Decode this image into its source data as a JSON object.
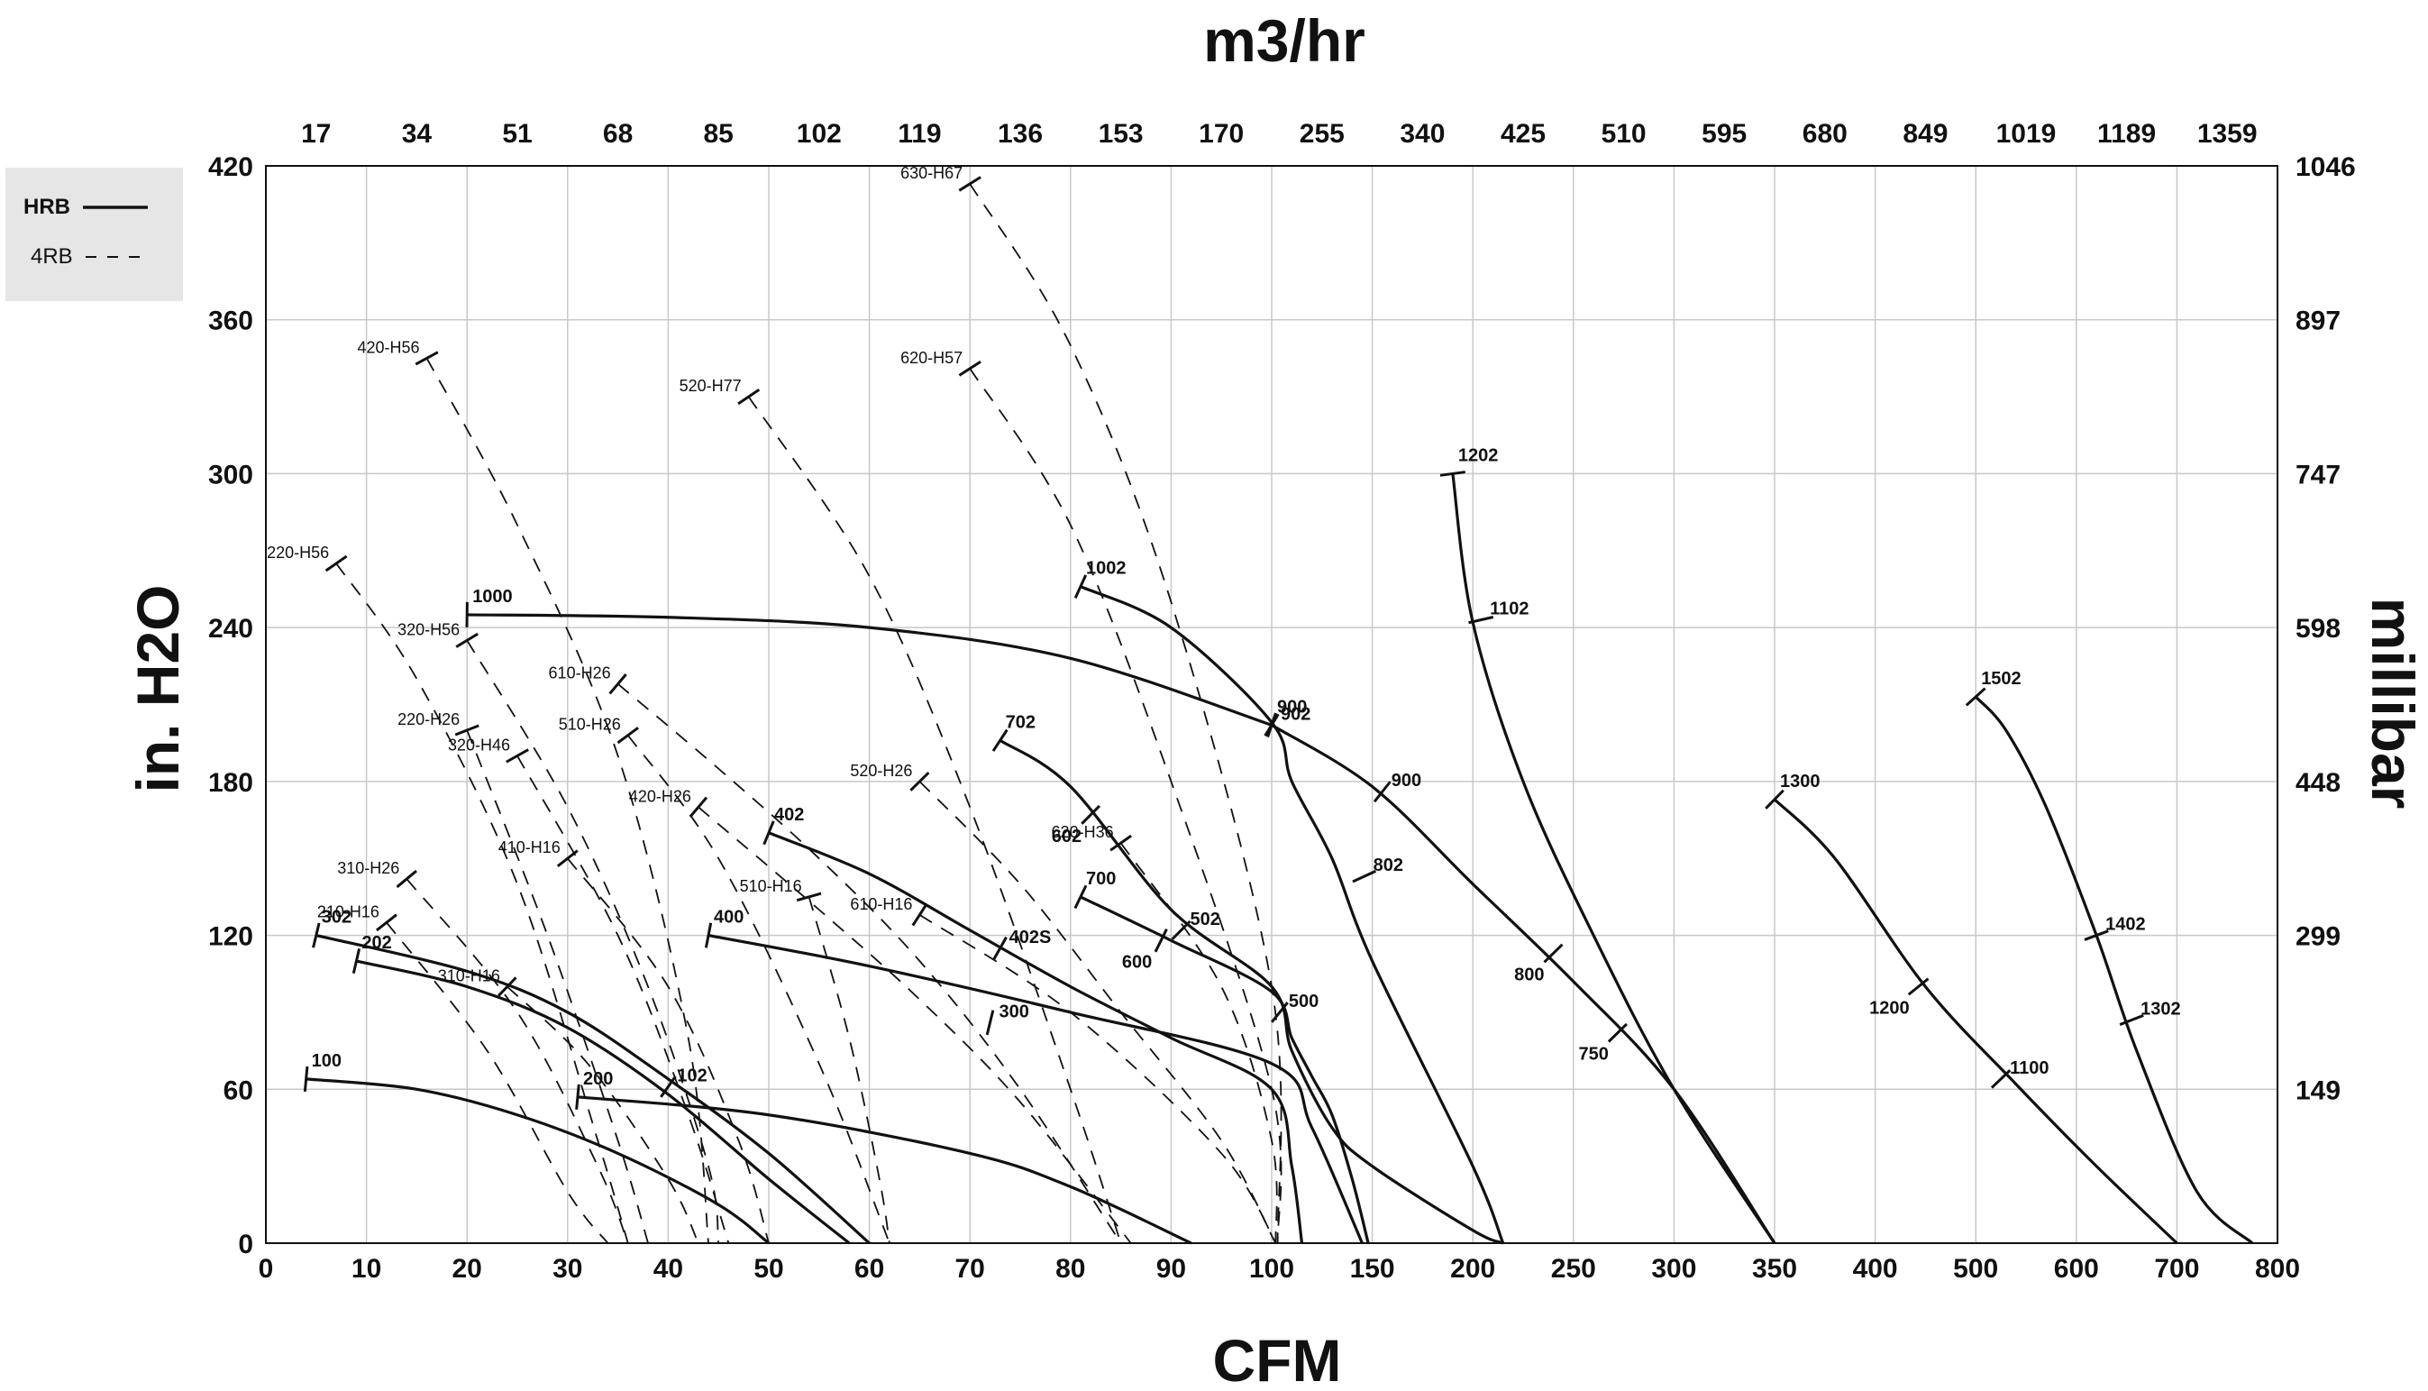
{
  "chart_data": {
    "type": "line",
    "title": "",
    "xlabel": "CFM",
    "ylabel": "in. H2O",
    "x2label": "m3/hr",
    "y2label": "millibar",
    "legend": {
      "position": "top-left",
      "entries": [
        {
          "name": "HRB",
          "style": "solid",
          "bold": true
        },
        {
          "name": "4RB",
          "style": "dashed",
          "bold": false
        }
      ]
    },
    "grid": true,
    "x_axis": {
      "scale": "piecewise",
      "ticks": [
        "0",
        "10",
        "20",
        "30",
        "40",
        "50",
        "60",
        "70",
        "80",
        "90",
        "100",
        "150",
        "200",
        "250",
        "300",
        "350",
        "400",
        "500",
        "600",
        "700",
        "800"
      ]
    },
    "top_axis_ticks": [
      "17",
      "34",
      "51",
      "68",
      "85",
      "102",
      "119",
      "136",
      "153",
      "170",
      "255",
      "340",
      "425",
      "510",
      "595",
      "680",
      "849",
      "1019",
      "1189",
      "1359"
    ],
    "y_axis": {
      "ylim": [
        0,
        420
      ],
      "ticks": [
        "0",
        "60",
        "120",
        "180",
        "240",
        "300",
        "360",
        "420"
      ]
    },
    "right_axis_ticks": [
      "149",
      "299",
      "448",
      "598",
      "747",
      "897",
      "1046"
    ],
    "series": [
      {
        "name": "1000",
        "style": "solid",
        "x": [
          20,
          40,
          60,
          80,
          100
        ],
        "y": [
          245,
          244,
          240,
          228,
          202
        ],
        "marks": [
          {
            "x": 100,
            "y": 202,
            "label": "902",
            "lside": "right"
          }
        ]
      },
      {
        "name": "900",
        "style": "solid",
        "x": [
          100,
          150,
          200,
          250,
          300,
          350
        ],
        "y": [
          202,
          178,
          140,
          102,
          60,
          0
        ],
        "marks": [
          {
            "x": 155,
            "y": 176,
            "label": "900",
            "lside": "right"
          },
          {
            "x": 240,
            "y": 113,
            "label": "800",
            "lside": "left"
          },
          {
            "x": 272,
            "y": 82,
            "label": "750",
            "lside": "left"
          }
        ]
      },
      {
        "name": "1002",
        "style": "solid",
        "x": [
          81,
          90,
          100,
          110,
          130,
          150,
          200,
          215
        ],
        "y": [
          256,
          240,
          203,
          180,
          150,
          110,
          30,
          0
        ],
        "marks": [
          {
            "x": 146,
            "y": 143,
            "label": "802",
            "lside": "right"
          }
        ]
      },
      {
        "name": "1202",
        "style": "solid",
        "x": [
          190,
          200,
          225,
          260,
          300,
          350
        ],
        "y": [
          300,
          242,
          180,
          120,
          60,
          0
        ],
        "marks": [
          {
            "x": 204,
            "y": 243,
            "label": "1102",
            "lside": "right"
          }
        ]
      },
      {
        "name": "1300",
        "style": "solid",
        "x": [
          350,
          380,
          450,
          540,
          620,
          700
        ],
        "y": [
          173,
          150,
          100,
          62,
          30,
          0
        ],
        "marks": [
          {
            "x": 443,
            "y": 100,
            "label": "1200",
            "lside": "left"
          },
          {
            "x": 525,
            "y": 64,
            "label": "1100",
            "lside": "right"
          }
        ]
      },
      {
        "name": "1502",
        "style": "solid",
        "x": [
          500,
          530,
          570,
          620,
          660,
          720,
          775
        ],
        "y": [
          213,
          200,
          170,
          120,
          75,
          20,
          0
        ],
        "marks": [
          {
            "x": 620,
            "y": 120,
            "label": "1402",
            "lside": "right"
          },
          {
            "x": 655,
            "y": 87,
            "label": "1302",
            "lside": "right"
          }
        ]
      },
      {
        "name": "702",
        "style": "solid",
        "x": [
          73,
          80,
          90,
          100,
          110,
          130,
          150,
          200,
          215
        ],
        "y": [
          196,
          178,
          130,
          100,
          75,
          45,
          30,
          5,
          0
        ],
        "marks": [
          {
            "x": 82,
            "y": 167,
            "label": "602",
            "lside": "left"
          },
          {
            "x": 91,
            "y": 122,
            "label": "502",
            "lside": "right"
          }
        ]
      },
      {
        "name": "700",
        "style": "solid",
        "x": [
          81,
          90,
          100,
          110,
          120,
          130,
          140,
          148
        ],
        "y": [
          135,
          118,
          98,
          80,
          65,
          50,
          25,
          0
        ],
        "marks": [
          {
            "x": 89,
            "y": 118,
            "label": "600",
            "lside": "left"
          },
          {
            "x": 104,
            "y": 90,
            "label": "500",
            "lside": "right"
          }
        ]
      },
      {
        "name": "402",
        "style": "solid",
        "x": [
          50,
          60,
          70,
          80,
          90,
          100,
          110,
          115
        ],
        "y": [
          160,
          144,
          122,
          100,
          80,
          60,
          30,
          0
        ],
        "marks": [
          {
            "x": 73,
            "y": 115,
            "label": "402S",
            "lside": "right"
          }
        ]
      },
      {
        "name": "400",
        "style": "solid",
        "x": [
          44,
          60,
          80,
          100,
          120,
          145
        ],
        "y": [
          120,
          108,
          90,
          70,
          45,
          0
        ],
        "marks": [
          {
            "x": 72,
            "y": 86,
            "label": "300",
            "lside": "right"
          }
        ]
      },
      {
        "name": "302",
        "style": "solid",
        "x": [
          5,
          20,
          30,
          40,
          50,
          60
        ],
        "y": [
          120,
          106,
          90,
          64,
          35,
          0
        ],
        "marks": [
          {
            "x": 40,
            "y": 61,
            "label": "102",
            "lside": "right"
          }
        ]
      },
      {
        "name": "202",
        "style": "solid",
        "x": [
          9,
          20,
          30,
          40,
          50,
          58
        ],
        "y": [
          110,
          100,
          84,
          58,
          25,
          0
        ],
        "marks": []
      },
      {
        "name": "100",
        "style": "solid",
        "x": [
          4,
          15,
          25,
          35,
          45,
          50
        ],
        "y": [
          64,
          60,
          50,
          35,
          15,
          0
        ],
        "marks": []
      },
      {
        "name": "200",
        "style": "solid",
        "x": [
          31,
          50,
          70,
          80,
          92
        ],
        "y": [
          57,
          50,
          35,
          22,
          0
        ],
        "marks": []
      },
      {
        "name": "630-H67",
        "style": "dashed",
        "x": [
          70,
          80,
          90,
          100,
          103
        ],
        "y": [
          413,
          350,
          250,
          100,
          0
        ],
        "marks": []
      },
      {
        "name": "620-H57",
        "style": "dashed",
        "x": [
          70,
          80,
          90,
          100,
          103
        ],
        "y": [
          341,
          280,
          180,
          60,
          0
        ],
        "marks": []
      },
      {
        "name": "520-H77",
        "style": "dashed",
        "x": [
          48,
          60,
          70,
          80,
          85
        ],
        "y": [
          330,
          260,
          170,
          60,
          0
        ],
        "marks": []
      },
      {
        "name": "420-H56",
        "style": "dashed",
        "x": [
          16,
          25,
          35,
          42,
          44
        ],
        "y": [
          345,
          280,
          190,
          80,
          0
        ],
        "marks": []
      },
      {
        "name": "220-H56",
        "style": "dashed",
        "x": [
          7,
          15,
          25,
          33,
          36
        ],
        "y": [
          265,
          220,
          140,
          40,
          0
        ],
        "marks": []
      },
      {
        "name": "320-H56",
        "style": "dashed",
        "x": [
          20,
          30,
          38,
          44,
          45
        ],
        "y": [
          235,
          170,
          100,
          30,
          0
        ],
        "marks": []
      },
      {
        "name": "610-H26",
        "style": "dashed",
        "x": [
          35,
          45,
          55,
          65,
          75,
          85
        ],
        "y": [
          218,
          185,
          150,
          110,
          60,
          0
        ],
        "marks": []
      },
      {
        "name": "620-H36",
        "style": "dashed",
        "x": [
          85,
          95,
          100,
          102
        ],
        "y": [
          156,
          100,
          40,
          0
        ],
        "marks": []
      },
      {
        "name": "520-H26",
        "style": "dashed",
        "x": [
          65,
          75,
          85,
          95,
          102
        ],
        "y": [
          180,
          140,
          90,
          40,
          0
        ],
        "marks": []
      },
      {
        "name": "220-H26",
        "style": "dashed",
        "x": [
          20,
          28,
          35,
          38
        ],
        "y": [
          200,
          120,
          40,
          0
        ],
        "marks": []
      },
      {
        "name": "320-H46",
        "style": "dashed",
        "x": [
          25,
          35,
          42,
          46
        ],
        "y": [
          190,
          120,
          50,
          0
        ],
        "marks": []
      },
      {
        "name": "510-H26",
        "style": "dashed",
        "x": [
          36,
          45,
          55,
          62
        ],
        "y": [
          198,
          150,
          70,
          0
        ],
        "marks": []
      },
      {
        "name": "420-H26",
        "style": "dashed",
        "x": [
          43,
          55,
          65,
          75,
          86
        ],
        "y": [
          170,
          130,
          95,
          55,
          0
        ],
        "marks": []
      },
      {
        "name": "310-H26",
        "style": "dashed",
        "x": [
          14,
          25,
          33,
          36
        ],
        "y": [
          142,
          90,
          30,
          0
        ],
        "marks": []
      },
      {
        "name": "410-H16",
        "style": "dashed",
        "x": [
          30,
          40,
          47,
          50
        ],
        "y": [
          150,
          100,
          40,
          0
        ],
        "marks": []
      },
      {
        "name": "210-H16",
        "style": "dashed",
        "x": [
          12,
          22,
          30,
          34
        ],
        "y": [
          125,
          75,
          20,
          0
        ],
        "marks": []
      },
      {
        "name": "510-H16",
        "style": "dashed",
        "x": [
          54,
          58,
          61,
          62
        ],
        "y": [
          135,
          80,
          25,
          0
        ],
        "marks": []
      },
      {
        "name": "610-H16",
        "style": "dashed",
        "x": [
          65,
          80,
          95,
          102
        ],
        "y": [
          128,
          90,
          35,
          0
        ],
        "marks": []
      },
      {
        "name": "310-H16",
        "style": "dashed",
        "x": [
          24,
          32,
          40,
          43
        ],
        "y": [
          100,
          70,
          25,
          0
        ],
        "marks": []
      }
    ]
  }
}
